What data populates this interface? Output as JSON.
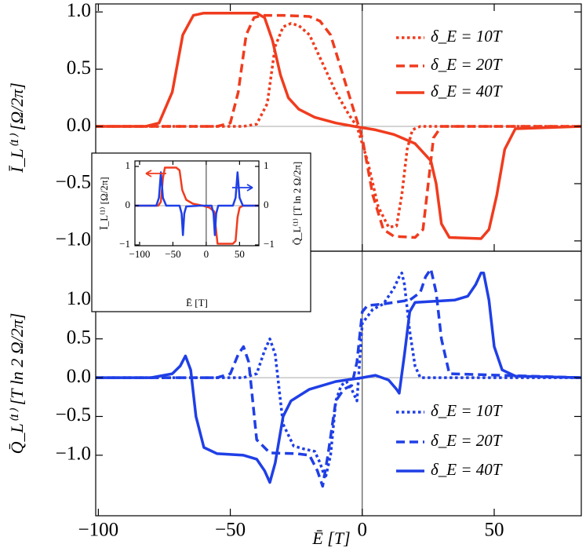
{
  "chart_data": [
    {
      "type": "line",
      "ylabel": "Ī_L⁽¹⁾ [Ω/2π]",
      "xlim": [
        -101,
        83
      ],
      "ylim": [
        -1.09,
        1.07
      ],
      "yticks": [
        {
          "value": -1.0,
          "label": "−1.0"
        },
        {
          "value": -0.5,
          "label": "−0.5"
        },
        {
          "value": 0.0,
          "label": "0.0"
        },
        {
          "value": 0.5,
          "label": "0.5"
        },
        {
          "value": 1.0,
          "label": "1.0"
        }
      ],
      "legend": "upper right",
      "series": [
        {
          "name": "δ_E = 10T",
          "color": "#f03c1e",
          "dash": "dotted",
          "x": [
            -101,
            -45,
            -40,
            -36,
            -33,
            -30,
            -27,
            -24,
            -20,
            -15,
            -10,
            -5,
            -2,
            2,
            6,
            10,
            13,
            15,
            17,
            19,
            22,
            83
          ],
          "values": [
            0,
            0,
            0.02,
            0.2,
            0.7,
            0.87,
            0.9,
            0.88,
            0.8,
            0.55,
            0.3,
            0.1,
            0,
            -0.3,
            -0.7,
            -0.88,
            -0.87,
            -0.6,
            -0.2,
            -0.03,
            0,
            0
          ]
        },
        {
          "name": "δ_E = 20T",
          "color": "#f03c1e",
          "dash": "dashed",
          "x": [
            -101,
            -55,
            -50,
            -47,
            -44,
            -41,
            -38,
            -30,
            -20,
            -16,
            -12,
            -8,
            -4,
            0,
            4,
            8,
            12,
            20,
            23,
            25,
            27,
            30,
            83
          ],
          "values": [
            0,
            0,
            0.03,
            0.3,
            0.8,
            0.95,
            0.97,
            0.97,
            0.96,
            0.92,
            0.8,
            0.5,
            0.2,
            -0.1,
            -0.6,
            -0.9,
            -0.96,
            -0.97,
            -0.9,
            -0.5,
            -0.1,
            0,
            0
          ]
        },
        {
          "name": "δ_E = 40T",
          "color": "#f03c1e",
          "dash": "solid",
          "x": [
            -101,
            -82,
            -77,
            -72,
            -68,
            -64,
            -60,
            -40,
            -37,
            -34,
            -31,
            -28,
            -24,
            -18,
            -10,
            -3,
            5,
            12,
            20,
            26,
            28,
            30,
            33,
            45,
            48,
            51,
            54,
            58,
            83
          ],
          "values": [
            0,
            0,
            0.03,
            0.3,
            0.8,
            0.97,
            0.99,
            0.99,
            0.95,
            0.75,
            0.45,
            0.25,
            0.15,
            0.08,
            0.03,
            0,
            -0.03,
            -0.07,
            -0.15,
            -0.3,
            -0.5,
            -0.85,
            -0.97,
            -0.98,
            -0.9,
            -0.6,
            -0.2,
            -0.02,
            0
          ]
        }
      ]
    },
    {
      "type": "line",
      "ylabel": "Q̄_L⁽¹⁾ [T ln 2 Ω/2π]",
      "xlabel": "Ē [T]",
      "xlim": [
        -101,
        83
      ],
      "ylim": [
        -1.78,
        1.63
      ],
      "xticks": [
        {
          "value": -100,
          "label": "−100"
        },
        {
          "value": -50,
          "label": "−50"
        },
        0,
        50
      ],
      "yticks": [
        {
          "value": -1.0,
          "label": "−1.0"
        },
        {
          "value": -0.5,
          "label": "−0.5"
        },
        {
          "value": 0.0,
          "label": "0.0"
        },
        {
          "value": 0.5,
          "label": "0.5"
        },
        {
          "value": 1.0,
          "label": "1.0"
        }
      ],
      "legend": "lower right",
      "series": [
        {
          "name": "δ_E = 10T",
          "color": "#1f3fe6",
          "dash": "dotted",
          "x": [
            -101,
            -45,
            -40,
            -37,
            -35,
            -33,
            -30,
            -26,
            -22,
            -18,
            -16,
            -14,
            -12,
            -10,
            -8,
            -6,
            -4,
            -2,
            0,
            4,
            8,
            12,
            14,
            15,
            16,
            18,
            20,
            22,
            83
          ],
          "values": [
            0,
            0,
            0.05,
            0.35,
            0.5,
            0.3,
            -0.6,
            -0.88,
            -0.92,
            -0.95,
            -1.1,
            -1.3,
            -1.0,
            -0.3,
            -0.1,
            -0.05,
            -0.15,
            -0.3,
            0.7,
            0.88,
            0.95,
            1.15,
            1.3,
            1.35,
            1.2,
            0.6,
            0.15,
            0,
            0
          ]
        },
        {
          "name": "δ_E = 20T",
          "color": "#1f3fe6",
          "dash": "dashed",
          "x": [
            -101,
            -55,
            -50,
            -47,
            -45,
            -43,
            -40,
            -35,
            -25,
            -20,
            -17,
            -15,
            -13,
            -10,
            -7,
            -4,
            -2,
            0,
            2,
            8,
            18,
            22,
            24,
            26,
            28,
            30,
            33,
            83
          ],
          "values": [
            0,
            0,
            0.05,
            0.3,
            0.4,
            0.2,
            -0.8,
            -0.97,
            -0.98,
            -1.0,
            -1.2,
            -1.4,
            -1.0,
            -0.3,
            -0.15,
            -0.1,
            0.2,
            0.85,
            0.93,
            0.95,
            1.0,
            1.1,
            1.3,
            1.4,
            1.1,
            0.5,
            0.05,
            0
          ]
        },
        {
          "name": "δ_E = 40T",
          "color": "#1f3fe6",
          "dash": "solid",
          "x": [
            -101,
            -80,
            -72,
            -69,
            -67,
            -65,
            -63,
            -60,
            -55,
            -45,
            -40,
            -37,
            -35,
            -33,
            -30,
            -27,
            -20,
            -10,
            0,
            5,
            10,
            13,
            14,
            16,
            18,
            20,
            25,
            35,
            40,
            43,
            45,
            46,
            48,
            50,
            53,
            58,
            83
          ],
          "values": [
            0,
            0,
            0.05,
            0.15,
            0.28,
            0.1,
            -0.5,
            -0.9,
            -0.98,
            -1.0,
            -1.05,
            -1.2,
            -1.35,
            -1.1,
            -0.5,
            -0.3,
            -0.15,
            -0.05,
            0.0,
            0.03,
            -0.03,
            -0.15,
            -0.2,
            0.3,
            0.85,
            0.97,
            0.98,
            1.0,
            1.05,
            1.2,
            1.35,
            1.35,
            1.0,
            0.4,
            0.1,
            0.02,
            0
          ]
        }
      ]
    },
    {
      "type": "line",
      "ylabel": "Ī_L⁽¹⁾ [Ω/2π]",
      "y2label": "Q̄_L⁽¹⁾ [T ln 2 Ω/2π]",
      "xlabel": "Ē [T]",
      "xlim": [
        -107,
        79
      ],
      "ylim": [
        -1.02,
        1.14
      ],
      "y2lim": [
        -1.02,
        1.14
      ],
      "xticks": [
        {
          "value": -100,
          "label": "−100"
        },
        {
          "value": -50,
          "label": "−50"
        },
        0,
        50
      ],
      "yticks": [
        {
          "value": -1,
          "label": "−1"
        },
        0,
        1
      ],
      "y2ticks": [
        {
          "value": -1,
          "label": "−1"
        },
        0,
        1
      ],
      "series": [
        {
          "color": "#f03c1e",
          "dash": "solid",
          "x": [
            -107,
            -72,
            -68,
            -65,
            -62,
            -45,
            -40,
            -36,
            -30,
            -20,
            -5,
            5,
            12,
            14,
            17,
            40,
            44,
            47,
            50,
            55,
            79
          ],
          "values": [
            0,
            0,
            0.1,
            0.7,
            0.97,
            0.97,
            0.9,
            0.4,
            0.15,
            0.05,
            0,
            -0.05,
            -0.15,
            -0.5,
            -0.97,
            -0.97,
            -0.9,
            -0.3,
            -0.05,
            0,
            0
          ]
        },
        {
          "color": "#1f3fe6",
          "dash": "solid",
          "axis": "y2",
          "x": [
            -107,
            -75,
            -71,
            -68,
            -65,
            -60,
            -40,
            -37,
            -35,
            -33,
            -30,
            -10,
            8,
            11,
            13,
            15,
            18,
            40,
            44,
            47,
            50,
            55,
            79
          ],
          "values": [
            0,
            0,
            0.2,
            0.85,
            0.2,
            0,
            0,
            -0.2,
            -0.75,
            -0.2,
            -0.02,
            0,
            0,
            -0.2,
            -0.75,
            -0.2,
            0,
            0,
            0.2,
            0.85,
            0.2,
            0,
            0
          ]
        }
      ]
    }
  ]
}
